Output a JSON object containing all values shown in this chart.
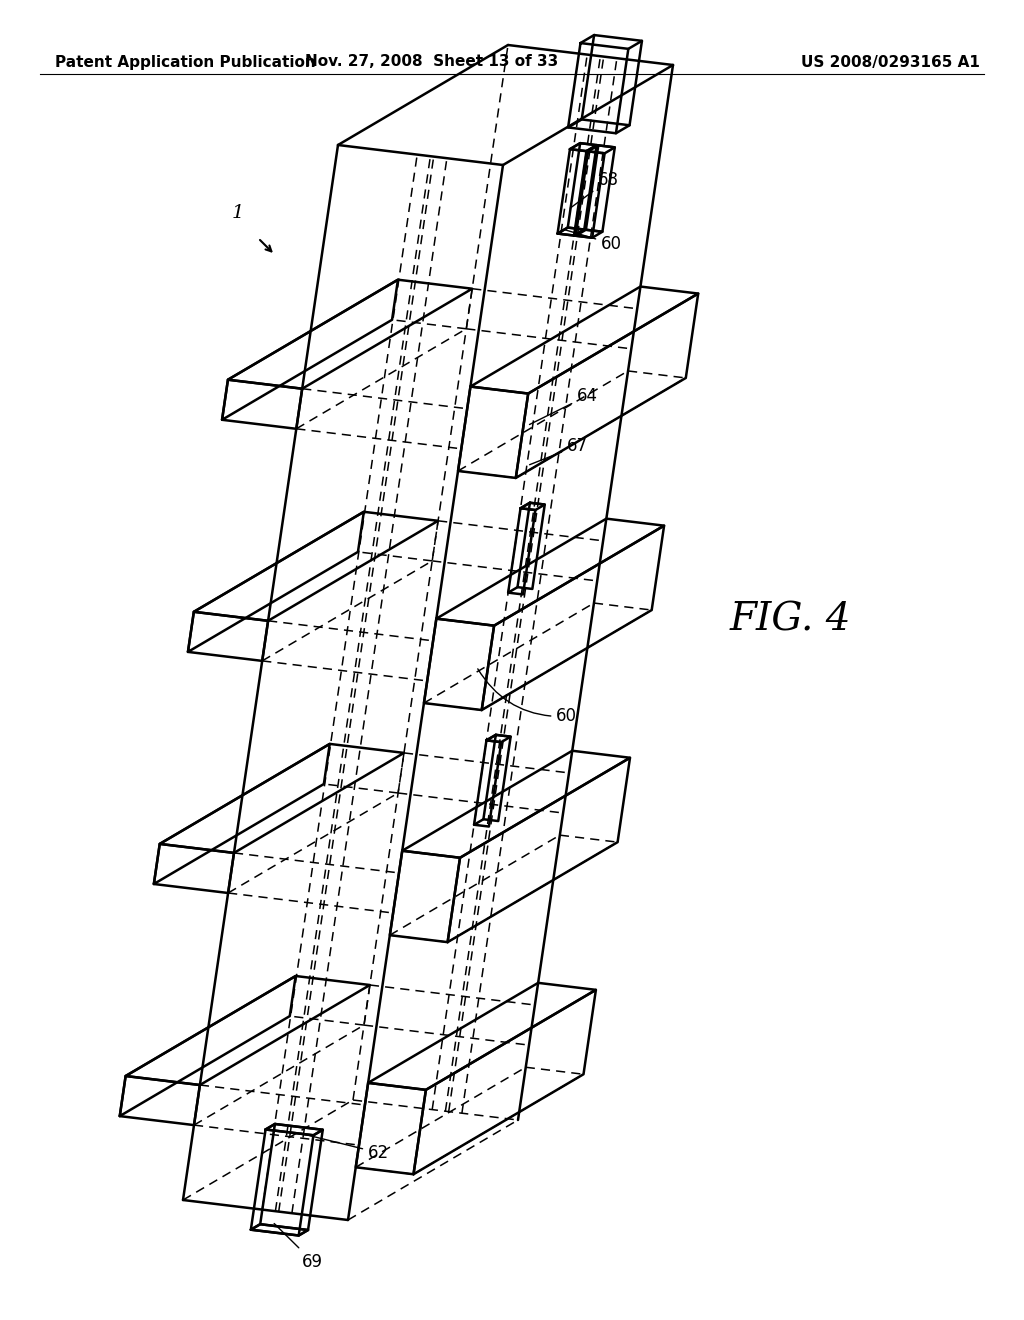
{
  "header_left": "Patent Application Publication",
  "header_mid": "Nov. 27, 2008  Sheet 13 of 33",
  "header_right": "US 2008/0293165 A1",
  "fig_label": "FIG. 4",
  "bg_color": "#ffffff",
  "line_color": "#000000",
  "lw_solid": 1.8,
  "lw_dash": 1.1,
  "dash_pattern": [
    6,
    4
  ],
  "header_lw": 1.0
}
